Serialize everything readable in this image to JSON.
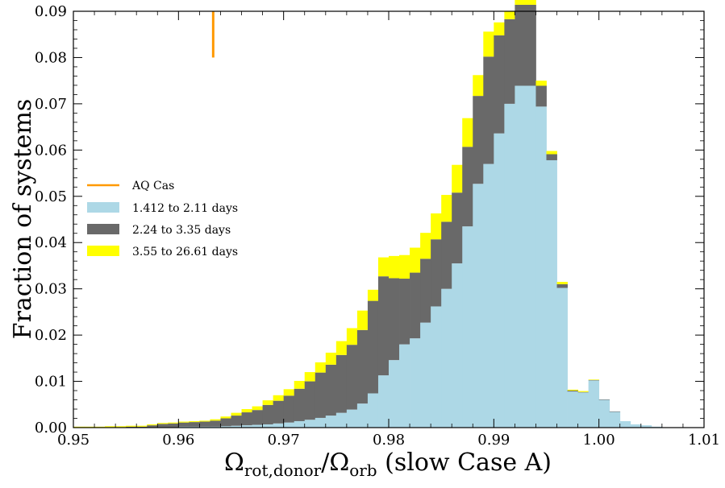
{
  "chart_data": {
    "type": "bar",
    "stacked": true,
    "xlabel_parts": {
      "omega1": "Ω",
      "sub1": "rot,donor",
      "slash": "/",
      "omega2": "Ω",
      "sub2": "orb",
      "suffix": " (slow Case A)"
    },
    "ylabel": "Fraction of systems",
    "xlim": [
      0.95,
      1.01
    ],
    "ylim": [
      0,
      0.09
    ],
    "xticks": [
      "0.95",
      "0.96",
      "0.97",
      "0.98",
      "0.99",
      "1.00",
      "1.01"
    ],
    "yticks": [
      "0.00",
      "0.01",
      "0.02",
      "0.03",
      "0.04",
      "0.05",
      "0.06",
      "0.07",
      "0.08",
      "0.09"
    ],
    "bin_width": 0.001,
    "bin_starts": [
      0.95,
      0.951,
      0.952,
      0.953,
      0.954,
      0.955,
      0.956,
      0.957,
      0.958,
      0.959,
      0.96,
      0.961,
      0.962,
      0.963,
      0.964,
      0.965,
      0.966,
      0.967,
      0.968,
      0.969,
      0.97,
      0.971,
      0.972,
      0.973,
      0.974,
      0.975,
      0.976,
      0.977,
      0.978,
      0.979,
      0.98,
      0.981,
      0.982,
      0.983,
      0.984,
      0.985,
      0.986,
      0.987,
      0.988,
      0.989,
      0.99,
      0.991,
      0.992,
      0.993,
      0.994,
      0.995,
      0.996,
      0.997,
      0.998,
      0.999,
      1.0,
      1.001,
      1.002,
      1.003,
      1.004,
      1.005,
      1.006,
      1.007,
      1.008,
      1.009
    ],
    "series": [
      {
        "name": "1.412 to 2.11 days",
        "color": "#add8e6",
        "values": [
          0.0,
          0.0,
          0.0,
          0.0,
          0.0,
          0.0,
          0.0,
          0.0001,
          0.0001,
          0.0001,
          0.0002,
          0.0002,
          0.0002,
          0.0002,
          0.0003,
          0.0004,
          0.0005,
          0.0006,
          0.0007,
          0.0009,
          0.0011,
          0.0014,
          0.0017,
          0.0021,
          0.0026,
          0.0032,
          0.0039,
          0.0052,
          0.0074,
          0.0113,
          0.0146,
          0.018,
          0.0193,
          0.0227,
          0.0262,
          0.03,
          0.0355,
          0.0435,
          0.0527,
          0.057,
          0.0636,
          0.07,
          0.0739,
          0.0739,
          0.0694,
          0.0578,
          0.0302,
          0.0078,
          0.0076,
          0.0102,
          0.006,
          0.0034,
          0.0014,
          0.0007,
          0.0005,
          0.0002,
          0.0,
          0.0,
          0.0,
          0.0
        ]
      },
      {
        "name": "2.24 to 3.35 days",
        "color": "#696969",
        "values": [
          0.0,
          0.0,
          0.0,
          0.0001,
          0.0001,
          0.0002,
          0.0002,
          0.0004,
          0.0007,
          0.0008,
          0.0009,
          0.001,
          0.0011,
          0.0013,
          0.0017,
          0.0022,
          0.0028,
          0.0032,
          0.0042,
          0.0049,
          0.0058,
          0.007,
          0.0083,
          0.0098,
          0.011,
          0.0125,
          0.014,
          0.0159,
          0.02,
          0.0214,
          0.0177,
          0.0142,
          0.0142,
          0.0138,
          0.0145,
          0.0145,
          0.0153,
          0.0172,
          0.019,
          0.0232,
          0.0212,
          0.0183,
          0.0175,
          0.0175,
          0.0045,
          0.0013,
          0.0008,
          0.0002,
          0.0001,
          0.0001,
          0.0001,
          0.0001,
          0.0,
          0.0,
          0.0,
          0.0,
          0.0,
          0.0,
          0.0,
          0.0
        ]
      },
      {
        "name": "3.55 to 26.61 days",
        "color": "#ffff00",
        "values": [
          0.0002,
          0.0002,
          0.0002,
          0.0002,
          0.0002,
          0.0002,
          0.0002,
          0.0002,
          0.0002,
          0.0002,
          0.0002,
          0.0002,
          0.0002,
          0.0003,
          0.0004,
          0.0006,
          0.0007,
          0.0008,
          0.001,
          0.0012,
          0.0014,
          0.0017,
          0.002,
          0.0022,
          0.0026,
          0.003,
          0.0036,
          0.0042,
          0.0024,
          0.0041,
          0.0048,
          0.0051,
          0.0054,
          0.0056,
          0.0056,
          0.0058,
          0.006,
          0.0062,
          0.0045,
          0.0054,
          0.0028,
          0.0017,
          0.0021,
          0.0021,
          0.0011,
          0.0007,
          0.0005,
          0.0002,
          0.0002,
          0.0001,
          0.0,
          0.0,
          0.0,
          0.0,
          0.0,
          0.0,
          0.0,
          0.0,
          0.0,
          0.0
        ]
      }
    ],
    "marker": {
      "name": "AQ Cas",
      "color": "#ff9900",
      "x": 0.9633,
      "y_range": [
        0.08,
        0.09
      ]
    },
    "legend": {
      "position": "center-left",
      "entries": [
        "AQ Cas",
        "1.412 to 2.11 days",
        "2.24 to 3.35 days",
        "3.55 to 26.61 days"
      ]
    },
    "grid": false
  }
}
